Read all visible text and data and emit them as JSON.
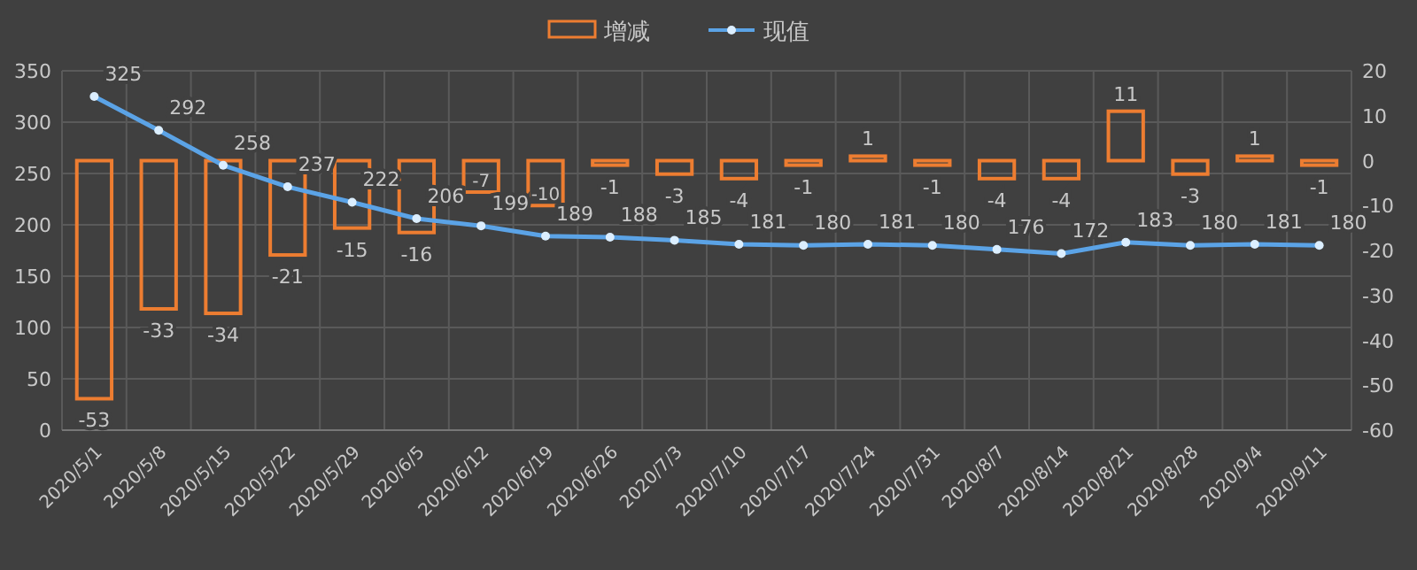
{
  "chart_data": {
    "type": "bar",
    "categories": [
      "2020/5/1",
      "2020/5/8",
      "2020/5/15",
      "2020/5/22",
      "2020/5/29",
      "2020/6/5",
      "2020/6/12",
      "2020/6/19",
      "2020/6/26",
      "2020/7/3",
      "2020/7/10",
      "2020/7/17",
      "2020/7/24",
      "2020/7/31",
      "2020/8/7",
      "2020/8/14",
      "2020/8/21",
      "2020/8/28",
      "2020/9/4",
      "2020/9/11"
    ],
    "series": [
      {
        "name": "增减",
        "axis": "y2",
        "color": "#ed7d31",
        "values": [
          -53,
          -33,
          -34,
          -21,
          -15,
          -16,
          -7,
          -10,
          -1,
          -3,
          -4,
          -1,
          1,
          -1,
          -4,
          -4,
          11,
          -3,
          1,
          -1
        ]
      },
      {
        "name": "现值",
        "type": "line",
        "axis": "y",
        "color": "#5ba3e6",
        "values": [
          325,
          292,
          258,
          237,
          222,
          206,
          199,
          189,
          188,
          185,
          181,
          180,
          181,
          180,
          176,
          172,
          183,
          180,
          181,
          180
        ]
      }
    ],
    "ylim": [
      0,
      350
    ],
    "yticks": [
      0,
      50,
      100,
      150,
      200,
      250,
      300,
      350
    ],
    "y2lim": [
      -60,
      20
    ],
    "y2ticks": [
      -60,
      -50,
      -40,
      -30,
      -20,
      -10,
      0,
      10,
      20
    ],
    "grid": true,
    "legend": "top",
    "marker": "circle",
    "data_labels": true
  }
}
